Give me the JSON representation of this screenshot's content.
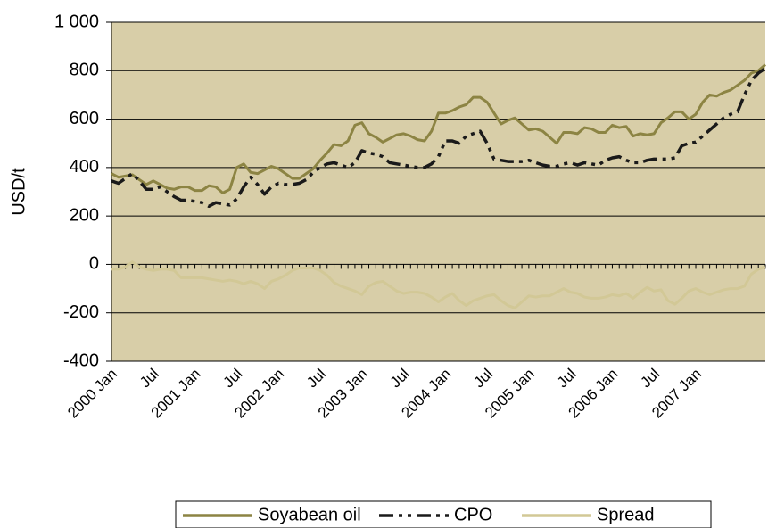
{
  "chart_data": {
    "type": "line",
    "y_label": "USD/t",
    "categories": [
      "2000 Jan",
      null,
      null,
      null,
      null,
      null,
      "Jul",
      null,
      null,
      null,
      null,
      null,
      "2001 Jan",
      null,
      null,
      null,
      null,
      null,
      "Jul",
      null,
      null,
      null,
      null,
      null,
      "2002 Jan",
      null,
      null,
      null,
      null,
      null,
      "Jul",
      null,
      null,
      null,
      null,
      null,
      "2003 Jan",
      null,
      null,
      null,
      null,
      null,
      "Jul",
      null,
      null,
      null,
      null,
      null,
      "2004 Jan",
      null,
      null,
      null,
      null,
      null,
      "Jul",
      null,
      null,
      null,
      null,
      null,
      "2005 Jan",
      null,
      null,
      null,
      null,
      null,
      "Jul",
      null,
      null,
      null,
      null,
      null,
      "2006 Jan",
      null,
      null,
      null,
      null,
      null,
      "Jul",
      null,
      null,
      null,
      null,
      null,
      "2007 Jan",
      null,
      null,
      null,
      null,
      null,
      null,
      null,
      null,
      null,
      null
    ],
    "series": [
      {
        "name": "Soyabean oil",
        "color": "#8c8443",
        "style": "solid",
        "values": [
          375,
          360,
          365,
          370,
          350,
          330,
          345,
          330,
          315,
          310,
          320,
          320,
          305,
          305,
          325,
          320,
          295,
          310,
          400,
          415,
          380,
          375,
          390,
          405,
          395,
          375,
          355,
          355,
          375,
          395,
          430,
          460,
          495,
          490,
          510,
          575,
          585,
          540,
          525,
          505,
          520,
          535,
          540,
          530,
          515,
          510,
          550,
          625,
          625,
          635,
          650,
          660,
          690,
          690,
          670,
          625,
          580,
          595,
          605,
          580,
          555,
          560,
          550,
          525,
          500,
          545,
          545,
          540,
          565,
          560,
          545,
          545,
          575,
          565,
          570,
          530,
          540,
          535,
          540,
          585,
          605,
          630,
          630,
          600,
          620,
          670,
          700,
          695,
          710,
          720,
          740,
          760,
          790,
          800,
          825
        ]
      },
      {
        "name": "CPO",
        "color": "#1a1a1a",
        "style": "dashed",
        "values": [
          345,
          335,
          355,
          375,
          345,
          310,
          310,
          320,
          300,
          280,
          265,
          265,
          260,
          255,
          240,
          255,
          250,
          245,
          270,
          320,
          360,
          330,
          290,
          320,
          335,
          330,
          330,
          335,
          350,
          380,
          400,
          415,
          420,
          410,
          400,
          420,
          470,
          460,
          455,
          445,
          420,
          415,
          410,
          405,
          400,
          400,
          415,
          445,
          510,
          510,
          500,
          530,
          540,
          550,
          500,
          435,
          430,
          425,
          425,
          425,
          430,
          420,
          410,
          405,
          405,
          415,
          420,
          410,
          420,
          415,
          410,
          430,
          440,
          445,
          430,
          420,
          420,
          430,
          435,
          435,
          435,
          440,
          490,
          500,
          505,
          530,
          555,
          580,
          605,
          620,
          630,
          700,
          760,
          790,
          810
        ]
      },
      {
        "name": "Spread",
        "color": "#d2c896",
        "style": "solid",
        "values": [
          -20,
          -20,
          -10,
          10,
          -10,
          -20,
          -25,
          -20,
          -20,
          -25,
          -55,
          -55,
          -55,
          -55,
          -60,
          -65,
          -70,
          -65,
          -70,
          -80,
          -70,
          -80,
          -100,
          -70,
          -60,
          -45,
          -25,
          -15,
          -15,
          -15,
          -25,
          -45,
          -75,
          -90,
          -100,
          -110,
          -125,
          -90,
          -75,
          -70,
          -90,
          -110,
          -120,
          -115,
          -115,
          -120,
          -135,
          -155,
          -135,
          -120,
          -150,
          -170,
          -150,
          -140,
          -130,
          -125,
          -150,
          -170,
          -180,
          -155,
          -130,
          -135,
          -130,
          -130,
          -115,
          -100,
          -115,
          -120,
          -135,
          -140,
          -140,
          -135,
          -125,
          -130,
          -120,
          -140,
          -115,
          -95,
          -110,
          -105,
          -150,
          -165,
          -140,
          -110,
          -100,
          -115,
          -125,
          -115,
          -105,
          -100,
          -100,
          -90,
          -40,
          -20,
          -10
        ]
      }
    ],
    "ylim": [
      -400,
      1000
    ],
    "yticks": [
      -400,
      -200,
      0,
      200,
      400,
      600,
      800,
      {
        "value": 1000,
        "label": "1 000"
      }
    ],
    "grid": true,
    "plot_background": "#d8cea8",
    "legend": "bottom"
  }
}
